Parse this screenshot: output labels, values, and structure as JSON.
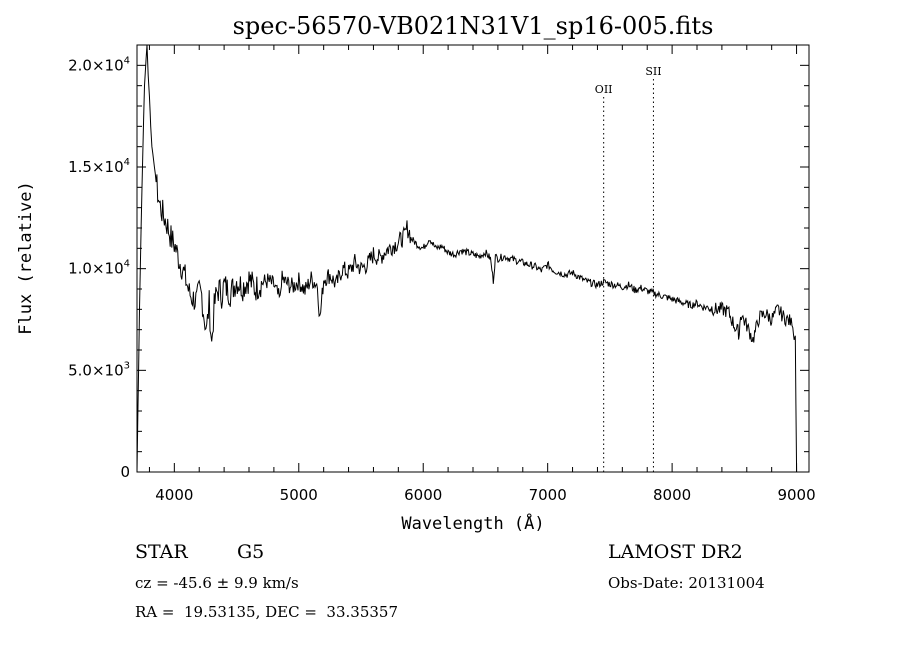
{
  "chart_data": {
    "type": "line",
    "title": "spec-56570-VB021N31V1_sp16-005.fits",
    "xlabel": "Wavelength (Å)",
    "ylabel": "Flux (relative)",
    "xlim": [
      3700,
      9100
    ],
    "ylim": [
      0,
      21000
    ],
    "x_ticks": [
      4000,
      5000,
      6000,
      7000,
      8000,
      9000
    ],
    "y_ticks": [
      {
        "value": 0,
        "mantissa": "0",
        "exponent": ""
      },
      {
        "value": 5000,
        "mantissa": "5.0×10",
        "exponent": "3"
      },
      {
        "value": 10000,
        "mantissa": "1.0×10",
        "exponent": "4"
      },
      {
        "value": 15000,
        "mantissa": "1.5×10",
        "exponent": "4"
      },
      {
        "value": 20000,
        "mantissa": "2.0×10",
        "exponent": "4"
      }
    ],
    "grid": false,
    "series": [
      {
        "x": [
          3700,
          3720,
          3740,
          3760,
          3780,
          3790,
          3800,
          3810,
          3820,
          3840,
          3860,
          3880,
          3900,
          3920,
          3940,
          3960,
          3980,
          4000,
          4020,
          4040,
          4060,
          4080,
          4100,
          4120,
          4140,
          4160,
          4180,
          4200,
          4220,
          4240,
          4260,
          4280,
          4300,
          4320,
          4340,
          4360,
          4380,
          4400,
          4450,
          4500,
          4550,
          4600,
          4650,
          4700,
          4750,
          4800,
          4850,
          4860,
          4900,
          4950,
          5000,
          5050,
          5100,
          5150,
          5170,
          5200,
          5250,
          5300,
          5350,
          5400,
          5450,
          5500,
          5550,
          5600,
          5650,
          5700,
          5750,
          5800,
          5850,
          5870,
          5890,
          5900,
          5950,
          6000,
          6050,
          6100,
          6150,
          6200,
          6250,
          6300,
          6350,
          6400,
          6450,
          6500,
          6540,
          6563,
          6580,
          6600,
          6650,
          6700,
          6750,
          6800,
          6850,
          6900,
          6950,
          7000,
          7050,
          7100,
          7150,
          7200,
          7250,
          7300,
          7350,
          7400,
          7450,
          7500,
          7550,
          7600,
          7650,
          7700,
          7750,
          7800,
          7850,
          7900,
          7950,
          8000,
          8050,
          8100,
          8150,
          8200,
          8250,
          8300,
          8350,
          8400,
          8450,
          8500,
          8540,
          8550,
          8600,
          8650,
          8700,
          8750,
          8800,
          8850,
          8900,
          8950,
          8970,
          8980,
          8990,
          9000
        ],
        "y": [
          0,
          8000,
          14000,
          19000,
          21000,
          19500,
          18500,
          17000,
          16000,
          15000,
          14000,
          13200,
          12800,
          12500,
          12200,
          11800,
          11400,
          11200,
          10800,
          10400,
          10100,
          9700,
          9300,
          8800,
          8600,
          8500,
          8400,
          8900,
          8700,
          7600,
          7000,
          8300,
          6300,
          8100,
          8800,
          9000,
          8700,
          9200,
          8800,
          9400,
          9100,
          9500,
          9000,
          9300,
          9400,
          9200,
          8400,
          9500,
          9300,
          9100,
          9400,
          8900,
          9500,
          9200,
          7500,
          9500,
          9700,
          9200,
          10000,
          9800,
          10300,
          10000,
          10200,
          10700,
          10500,
          10900,
          11100,
          11300,
          11600,
          12000,
          11800,
          11500,
          11200,
          11000,
          11500,
          11000,
          11100,
          10800,
          10700,
          10900,
          10800,
          10700,
          10600,
          10800,
          10500,
          9400,
          10600,
          10500,
          10600,
          10500,
          10400,
          10300,
          10200,
          10100,
          9900,
          10200,
          9900,
          9800,
          9700,
          9800,
          9600,
          9400,
          9300,
          9200,
          9350,
          9250,
          9200,
          9100,
          9200,
          8950,
          9050,
          8900,
          8800,
          8700,
          8600,
          8500,
          8400,
          8300,
          8200,
          8300,
          8100,
          8100,
          8000,
          8000,
          7900,
          7200,
          6800,
          7800,
          7200,
          6500,
          7600,
          7800,
          7500,
          8000,
          7600,
          7400,
          7100,
          6500,
          6700,
          0
        ]
      }
    ],
    "annotations": [
      {
        "label": "OII",
        "x": 7450
      },
      {
        "label": "SII",
        "x": 7850
      }
    ]
  },
  "info": {
    "object_type": "STAR",
    "subclass": "G5",
    "redshift": "cz = -45.6 ± 9.9 km/s",
    "coords": "RA =  19.53135, DEC =  33.35357",
    "survey": "LAMOST DR2",
    "obs_date": "Obs-Date: 20131004"
  }
}
